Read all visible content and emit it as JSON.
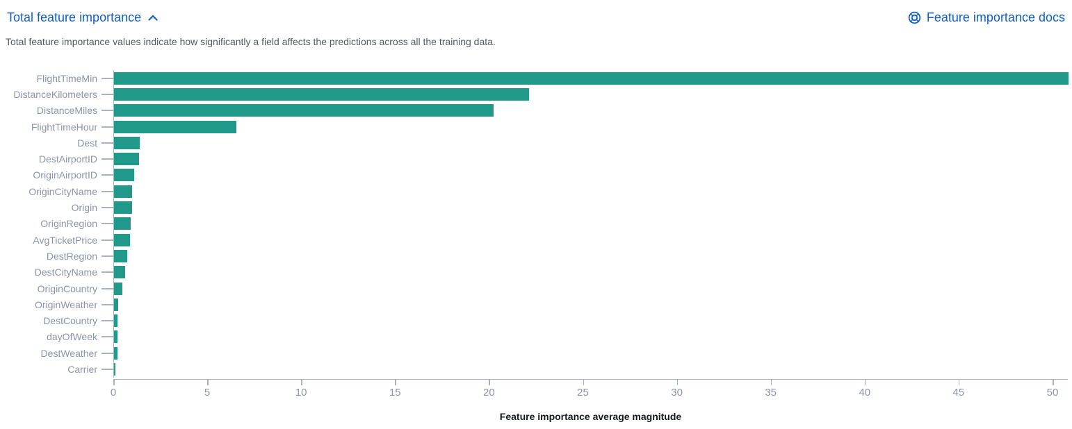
{
  "header": {
    "title": "Total feature importance",
    "docs_link_label": "Feature importance docs"
  },
  "description": "Total feature importance values indicate how significantly a field affects the predictions across all the training data.",
  "icons": {
    "collapse": "chevron-up-icon",
    "docs": "life-ring-help-icon"
  },
  "colors": {
    "link_blue": "#0e5fc8",
    "bar_teal": "#21998a",
    "axis_line": "#a9b2c3",
    "tick_label": "#8b94a9",
    "desc_text": "#53575f"
  },
  "chart_data": {
    "type": "bar",
    "orientation": "horizontal",
    "title": "Total feature importance",
    "xlabel": "Feature importance average magnitude",
    "ylabel": "",
    "xlim": [
      0,
      50.8
    ],
    "xticks": [
      0,
      5,
      10,
      15,
      20,
      25,
      30,
      35,
      40,
      45,
      50
    ],
    "grid": false,
    "legend": false,
    "categories": [
      "FlightTimeMin",
      "DistanceKilometers",
      "DistanceMiles",
      "FlightTimeHour",
      "Dest",
      "DestAirportID",
      "OriginAirportID",
      "OriginCityName",
      "Origin",
      "OriginRegion",
      "AvgTicketPrice",
      "DestRegion",
      "DestCityName",
      "OriginCountry",
      "OriginWeather",
      "DestCountry",
      "dayOfWeek",
      "DestWeather",
      "Carrier"
    ],
    "values": [
      50.8,
      22.1,
      20.2,
      6.5,
      1.35,
      1.32,
      1.07,
      0.97,
      0.95,
      0.88,
      0.85,
      0.71,
      0.6,
      0.43,
      0.22,
      0.2,
      0.19,
      0.17,
      0.06
    ]
  }
}
